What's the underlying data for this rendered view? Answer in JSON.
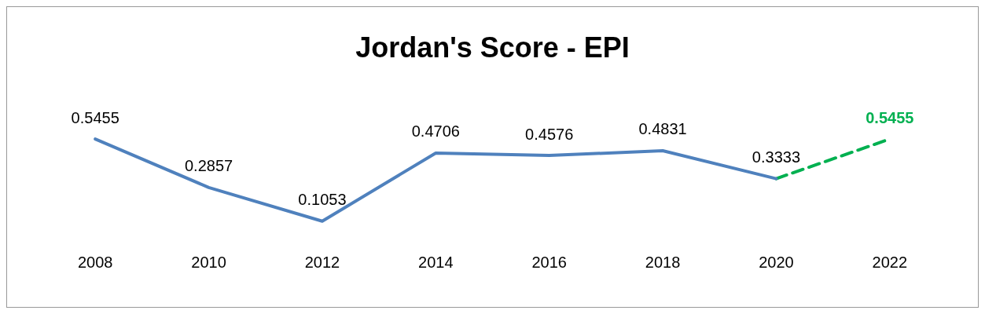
{
  "chart_data": {
    "type": "line",
    "title": "Jordan's Score - EPI",
    "categories": [
      "2008",
      "2010",
      "2012",
      "2014",
      "2016",
      "2018",
      "2020",
      "2022"
    ],
    "series": [
      {
        "color": "#4f81bd",
        "line_style": "solid",
        "values": [
          0.5455,
          0.2857,
          0.1053,
          0.4706,
          0.4576,
          0.4831,
          0.3333,
          null
        ],
        "value_labels": [
          "0.5455",
          "0.2857",
          "0.1053",
          "0.4706",
          "0.4576",
          "0.4831",
          "0.3333",
          null
        ]
      },
      {
        "color": "#00b050",
        "line_style": "dashed",
        "values": [
          null,
          null,
          null,
          null,
          null,
          null,
          0.3333,
          0.5455
        ],
        "value_labels": [
          null,
          null,
          null,
          null,
          null,
          null,
          null,
          "0.5455"
        ]
      }
    ],
    "marker": "none",
    "grid": false,
    "legend": false
  }
}
